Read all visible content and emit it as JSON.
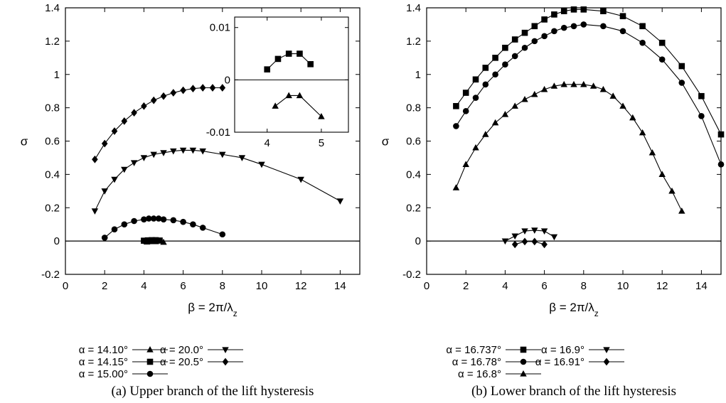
{
  "chart_data": [
    {
      "type": "line",
      "caption": "(a) Upper branch of the lift hysteresis",
      "xlabel": "β = 2π/λ_z",
      "ylabel": "σ",
      "xlim": [
        0,
        15
      ],
      "ylim": [
        -0.2,
        1.4
      ],
      "xticks": [
        0,
        2,
        4,
        6,
        8,
        10,
        12,
        14
      ],
      "yticks": [
        -0.2,
        0,
        0.2,
        0.4,
        0.6,
        0.8,
        1,
        1.2,
        1.4
      ],
      "xtick_labels": [
        "0",
        "2",
        "4",
        "6",
        "8",
        "10",
        "12",
        "14"
      ],
      "ytick_labels": [
        "-0.2",
        "0",
        "0.2",
        "0.4",
        "0.6",
        "0.8",
        "1",
        "1.2",
        "1.4"
      ],
      "grid": false,
      "zero_line": true,
      "legend_position": "below",
      "series": [
        {
          "name": "α = 14.10°",
          "marker": "triangle-up",
          "x": [
            4.15,
            4.4,
            4.6,
            5.0
          ],
          "y": [
            -0.005,
            -0.003,
            -0.003,
            -0.007
          ]
        },
        {
          "name": "α = 14.15°",
          "marker": "square",
          "x": [
            4.0,
            4.2,
            4.4,
            4.6,
            4.8
          ],
          "y": [
            0.002,
            0.004,
            0.005,
            0.005,
            0.003
          ]
        },
        {
          "name": "α = 15.00°",
          "marker": "circle",
          "x": [
            2.0,
            2.5,
            3.0,
            3.5,
            4.0,
            4.25,
            4.5,
            4.75,
            5.0,
            5.5,
            6.0,
            6.5,
            7.0,
            8.0
          ],
          "y": [
            0.02,
            0.07,
            0.1,
            0.12,
            0.13,
            0.135,
            0.135,
            0.135,
            0.13,
            0.125,
            0.115,
            0.1,
            0.08,
            0.04
          ]
        },
        {
          "name": "α = 20.0°",
          "marker": "triangle-down",
          "x": [
            1.5,
            2.0,
            2.5,
            3.0,
            3.5,
            4.0,
            4.5,
            5.0,
            5.5,
            6.0,
            6.5,
            7.0,
            8.0,
            9.0,
            10.0,
            12.0,
            14.0
          ],
          "y": [
            0.18,
            0.3,
            0.37,
            0.43,
            0.47,
            0.5,
            0.52,
            0.53,
            0.54,
            0.545,
            0.545,
            0.54,
            0.52,
            0.5,
            0.46,
            0.37,
            0.24
          ]
        },
        {
          "name": "α = 20.5°",
          "marker": "diamond",
          "x": [
            1.5,
            2.0,
            2.5,
            3.0,
            3.5,
            4.0,
            4.5,
            5.0,
            5.5,
            6.0,
            6.5,
            7.0,
            7.5,
            8.0
          ],
          "y": [
            0.49,
            0.585,
            0.66,
            0.72,
            0.77,
            0.81,
            0.845,
            0.87,
            0.89,
            0.905,
            0.915,
            0.92,
            0.92,
            0.92
          ]
        }
      ],
      "inset": {
        "xlim": [
          3.4,
          5.5
        ],
        "ylim": [
          -0.01,
          0.012
        ],
        "xticks": [
          4,
          5
        ],
        "yticks": [
          -0.01,
          0,
          0.01
        ],
        "xtick_labels": [
          "4",
          "5"
        ],
        "ytick_labels": [
          "-0.01",
          "0",
          "0.01"
        ],
        "series_names": [
          "α = 14.15°",
          "α = 14.10°"
        ]
      }
    },
    {
      "type": "line",
      "caption": "(b) Lower branch of the lift hysteresis",
      "xlabel": "β = 2π/λ_z",
      "ylabel": "σ",
      "xlim": [
        0,
        15
      ],
      "ylim": [
        -0.2,
        1.4
      ],
      "xticks": [
        0,
        2,
        4,
        6,
        8,
        10,
        12,
        14
      ],
      "yticks": [
        -0.2,
        0,
        0.2,
        0.4,
        0.6,
        0.8,
        1,
        1.2,
        1.4
      ],
      "xtick_labels": [
        "0",
        "2",
        "4",
        "6",
        "8",
        "10",
        "12",
        "14"
      ],
      "ytick_labels": [
        "-0.2",
        "0",
        "0.2",
        "0.4",
        "0.6",
        "0.8",
        "1",
        "1.2",
        "1.4"
      ],
      "grid": false,
      "zero_line": true,
      "legend_position": "below",
      "series": [
        {
          "name": "α = 16.737°",
          "marker": "square",
          "x": [
            1.5,
            2.0,
            2.5,
            3.0,
            3.5,
            4.0,
            4.5,
            5.0,
            5.5,
            6.0,
            6.5,
            7.0,
            7.5,
            8.0,
            9.0,
            10.0,
            11.0,
            12.0,
            13.0,
            14.0,
            15.0
          ],
          "y": [
            0.81,
            0.89,
            0.97,
            1.04,
            1.1,
            1.16,
            1.21,
            1.25,
            1.29,
            1.33,
            1.36,
            1.38,
            1.39,
            1.39,
            1.38,
            1.35,
            1.29,
            1.19,
            1.05,
            0.87,
            0.64
          ]
        },
        {
          "name": "α = 16.78°",
          "marker": "circle",
          "x": [
            1.5,
            2.0,
            2.5,
            3.0,
            3.5,
            4.0,
            4.5,
            5.0,
            5.5,
            6.0,
            6.5,
            7.0,
            7.5,
            8.0,
            9.0,
            10.0,
            11.0,
            12.0,
            13.0,
            14.0,
            15.0
          ],
          "y": [
            0.69,
            0.78,
            0.86,
            0.94,
            1.0,
            1.06,
            1.11,
            1.16,
            1.2,
            1.23,
            1.26,
            1.28,
            1.29,
            1.3,
            1.29,
            1.26,
            1.19,
            1.09,
            0.95,
            0.75,
            0.46
          ]
        },
        {
          "name": "α = 16.8°",
          "marker": "triangle-up",
          "x": [
            1.5,
            2.0,
            2.5,
            3.0,
            3.5,
            4.0,
            4.5,
            5.0,
            5.5,
            6.0,
            6.5,
            7.0,
            7.5,
            8.0,
            8.5,
            9.0,
            9.5,
            10.0,
            10.5,
            11.0,
            11.5,
            12.0,
            12.5,
            13.0
          ],
          "y": [
            0.32,
            0.46,
            0.56,
            0.64,
            0.71,
            0.76,
            0.81,
            0.85,
            0.88,
            0.91,
            0.93,
            0.94,
            0.94,
            0.94,
            0.93,
            0.91,
            0.87,
            0.81,
            0.74,
            0.65,
            0.53,
            0.4,
            0.3,
            0.18
          ]
        },
        {
          "name": "α = 16.9°",
          "marker": "triangle-down",
          "x": [
            4.0,
            4.5,
            5.0,
            5.5,
            6.0,
            6.5
          ],
          "y": [
            0.0,
            0.03,
            0.06,
            0.065,
            0.06,
            0.025
          ]
        },
        {
          "name": "α = 16.91°",
          "marker": "diamond",
          "x": [
            4.5,
            5.0,
            5.5,
            6.0
          ],
          "y": [
            -0.02,
            -0.003,
            -0.003,
            -0.02
          ]
        }
      ]
    }
  ]
}
